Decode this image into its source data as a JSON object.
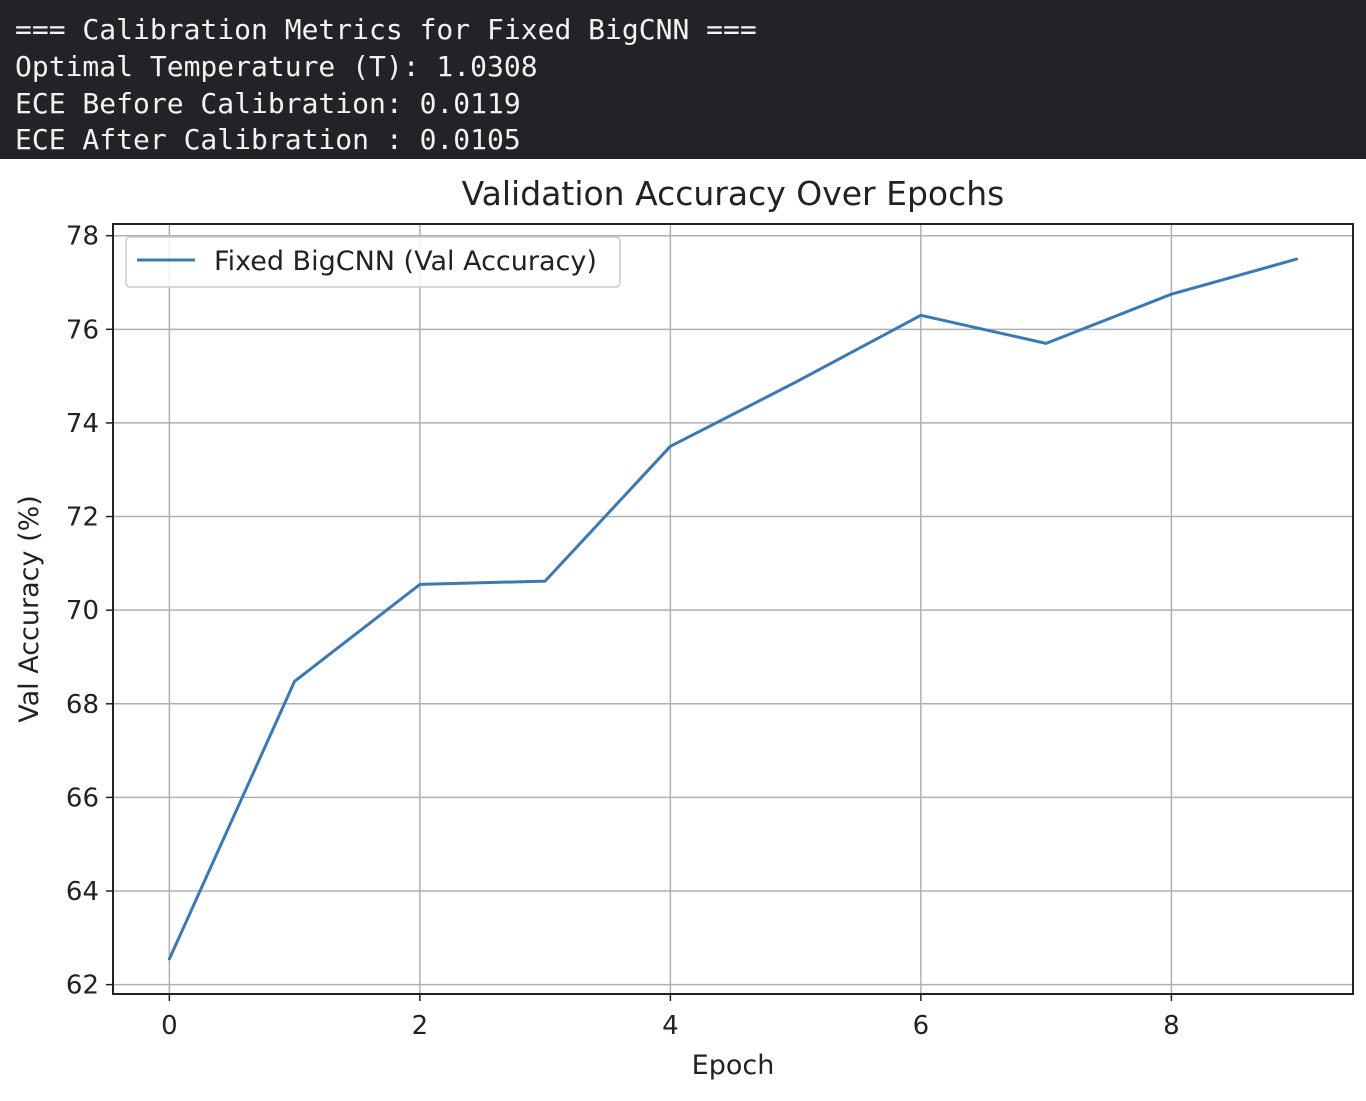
{
  "console": {
    "lines": [
      "=== Calibration Metrics for Fixed BigCNN ===",
      "Optimal Temperature (T): 1.0308",
      "ECE Before Calibration: 0.0119",
      "ECE After Calibration : 0.0105"
    ]
  },
  "chart_data": {
    "type": "line",
    "title": "Validation Accuracy Over Epochs",
    "xlabel": "Epoch",
    "ylabel": "Val Accuracy (%)",
    "x": [
      0,
      1,
      2,
      3,
      4,
      5,
      6,
      7,
      8,
      9
    ],
    "series": [
      {
        "name": "Fixed BigCNN (Val Accuracy)",
        "values": [
          62.55,
          68.48,
          70.55,
          70.62,
          73.5,
          74.87,
          76.3,
          75.7,
          76.75,
          77.5
        ],
        "color": "#3b78b6"
      }
    ],
    "xlim": [
      -0.45,
      9.45
    ],
    "ylim": [
      61.8,
      78.25
    ],
    "xticks": [
      0,
      2,
      4,
      6,
      8
    ],
    "yticks": [
      62,
      64,
      66,
      68,
      70,
      72,
      74,
      76,
      78
    ],
    "grid": true,
    "legend": "upper-left"
  }
}
